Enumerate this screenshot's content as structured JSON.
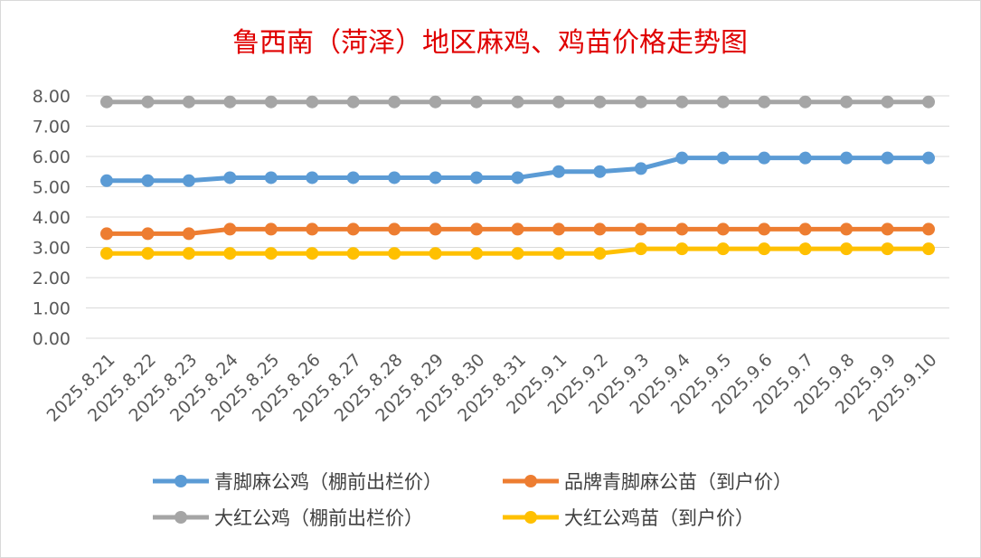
{
  "chart_data": {
    "type": "line",
    "title": "鲁西南（菏泽）地区麻鸡、鸡苗价格走势图",
    "categories": [
      "2025.8.21",
      "2025.8.22",
      "2025.8.23",
      "2025.8.24",
      "2025.8.25",
      "2025.8.26",
      "2025.8.27",
      "2025.8.28",
      "2025.8.29",
      "2025.8.30",
      "2025.8.31",
      "2025.9.1",
      "2025.9.2",
      "2025.9.3",
      "2025.9.4",
      "2025.9.5",
      "2025.9.6",
      "2025.9.7",
      "2025.9.8",
      "2025.9.9",
      "2025.9.10"
    ],
    "y_ticks": [
      "0.00",
      "1.00",
      "2.00",
      "3.00",
      "4.00",
      "5.00",
      "6.00",
      "7.00",
      "8.00"
    ],
    "ylim": [
      0,
      8
    ],
    "grid": true,
    "legend_position": "bottom",
    "series": [
      {
        "name": "青脚麻公鸡（棚前出栏价）",
        "color": "#5b9bd5",
        "values": [
          5.2,
          5.2,
          5.2,
          5.3,
          5.3,
          5.3,
          5.3,
          5.3,
          5.3,
          5.3,
          5.3,
          5.5,
          5.5,
          5.6,
          5.95,
          5.95,
          5.95,
          5.95,
          5.95,
          5.95,
          5.95
        ]
      },
      {
        "name": "品牌青脚麻公苗（到户价）",
        "color": "#ed7d31",
        "values": [
          3.45,
          3.45,
          3.45,
          3.6,
          3.6,
          3.6,
          3.6,
          3.6,
          3.6,
          3.6,
          3.6,
          3.6,
          3.6,
          3.6,
          3.6,
          3.6,
          3.6,
          3.6,
          3.6,
          3.6,
          3.6
        ]
      },
      {
        "name": "大红公鸡（棚前出栏价）",
        "color": "#a5a5a5",
        "values": [
          7.8,
          7.8,
          7.8,
          7.8,
          7.8,
          7.8,
          7.8,
          7.8,
          7.8,
          7.8,
          7.8,
          7.8,
          7.8,
          7.8,
          7.8,
          7.8,
          7.8,
          7.8,
          7.8,
          7.8,
          7.8
        ]
      },
      {
        "name": "大红公鸡苗（到户价）",
        "color": "#ffc000",
        "values": [
          2.8,
          2.8,
          2.8,
          2.8,
          2.8,
          2.8,
          2.8,
          2.8,
          2.8,
          2.8,
          2.8,
          2.8,
          2.8,
          2.95,
          2.95,
          2.95,
          2.95,
          2.95,
          2.95,
          2.95,
          2.95
        ]
      }
    ]
  }
}
